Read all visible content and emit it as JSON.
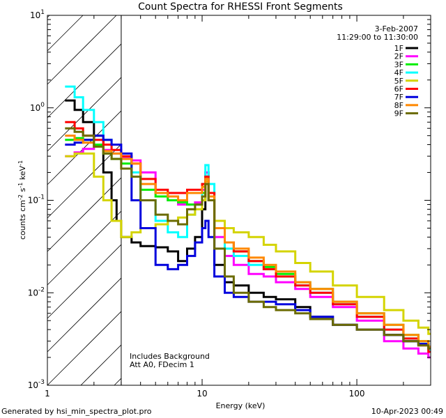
{
  "chart_data": {
    "type": "line",
    "title": "Count Spectra for RHESSI Front Segments",
    "xlabel": "Energy (keV)",
    "ylabel_parts": {
      "pre": "counts cm",
      "exp1": "-2",
      "mid": " s",
      "exp2": "-1",
      "post": " keV",
      "exp3": "-1"
    },
    "x_scale": "log",
    "y_scale": "log",
    "xlim": [
      1,
      300
    ],
    "ylim": [
      0.001,
      10
    ],
    "x_ticks": [
      {
        "value": 1,
        "label": "1"
      },
      {
        "value": 10,
        "label": "10"
      },
      {
        "value": 100,
        "label": "100"
      }
    ],
    "y_ticks": [
      {
        "value": 0.001,
        "base": "10",
        "exp": "-3"
      },
      {
        "value": 0.01,
        "base": "10",
        "exp": "-2"
      },
      {
        "value": 0.1,
        "base": "10",
        "exp": "-1"
      },
      {
        "value": 1,
        "base": "10",
        "exp": "0"
      },
      {
        "value": 10,
        "base": "10",
        "exp": "1"
      }
    ],
    "hatched_region_kev": [
      1,
      3
    ],
    "date": "3-Feb-2007",
    "time_range": "11:29:00 to 11:30:00",
    "annotations": [
      "Includes Background",
      "Att A0, FDecim 1"
    ],
    "series": [
      {
        "name": "1F",
        "color": "#000000",
        "points": [
          [
            1.3,
            1.2
          ],
          [
            1.5,
            0.95
          ],
          [
            1.7,
            0.7
          ],
          [
            2.0,
            0.5
          ],
          [
            2.3,
            0.2
          ],
          [
            2.6,
            0.1
          ],
          [
            2.8,
            0.06
          ],
          [
            3.0,
            0.04
          ],
          [
            3.5,
            0.035
          ],
          [
            4.0,
            0.032
          ],
          [
            5.0,
            0.031
          ],
          [
            6.0,
            0.028
          ],
          [
            7.0,
            0.022
          ],
          [
            8.0,
            0.03
          ],
          [
            9.0,
            0.04
          ],
          [
            10.0,
            0.08
          ],
          [
            10.5,
            0.2
          ],
          [
            11.0,
            0.1
          ],
          [
            12.0,
            0.02
          ],
          [
            14.0,
            0.013
          ],
          [
            16.0,
            0.012
          ],
          [
            20.0,
            0.01
          ],
          [
            25.0,
            0.009
          ],
          [
            30.0,
            0.0085
          ],
          [
            40.0,
            0.007
          ],
          [
            50.0,
            0.0055
          ],
          [
            70.0,
            0.0045
          ],
          [
            100.0,
            0.004
          ],
          [
            150.0,
            0.0035
          ],
          [
            200.0,
            0.003
          ],
          [
            250.0,
            0.0028
          ],
          [
            290.0,
            0.0026
          ]
        ]
      },
      {
        "name": "2F",
        "color": "#ff00ff",
        "points": [
          [
            1.3,
            0.3
          ],
          [
            1.5,
            0.33
          ],
          [
            1.7,
            0.36
          ],
          [
            2.0,
            0.38
          ],
          [
            2.3,
            0.35
          ],
          [
            2.6,
            0.32
          ],
          [
            3.0,
            0.29
          ],
          [
            3.5,
            0.27
          ],
          [
            4.0,
            0.2
          ],
          [
            5.0,
            0.12
          ],
          [
            6.0,
            0.1
          ],
          [
            7.0,
            0.09
          ],
          [
            8.0,
            0.09
          ],
          [
            9.0,
            0.095
          ],
          [
            10.0,
            0.13
          ],
          [
            10.5,
            0.2
          ],
          [
            11.0,
            0.12
          ],
          [
            12.0,
            0.04
          ],
          [
            14.0,
            0.025
          ],
          [
            16.0,
            0.02
          ],
          [
            20.0,
            0.016
          ],
          [
            25.0,
            0.015
          ],
          [
            30.0,
            0.013
          ],
          [
            40.0,
            0.011
          ],
          [
            50.0,
            0.009
          ],
          [
            70.0,
            0.007
          ],
          [
            100.0,
            0.005
          ],
          [
            150.0,
            0.003
          ],
          [
            200.0,
            0.0025
          ],
          [
            250.0,
            0.0022
          ],
          [
            290.0,
            0.002
          ]
        ]
      },
      {
        "name": "3F",
        "color": "#00ee00",
        "points": [
          [
            1.3,
            0.45
          ],
          [
            1.5,
            0.47
          ],
          [
            1.7,
            0.45
          ],
          [
            2.0,
            0.4
          ],
          [
            2.3,
            0.32
          ],
          [
            2.6,
            0.28
          ],
          [
            3.0,
            0.25
          ],
          [
            3.5,
            0.2
          ],
          [
            4.0,
            0.13
          ],
          [
            5.0,
            0.11
          ],
          [
            6.0,
            0.1
          ],
          [
            7.0,
            0.095
          ],
          [
            8.0,
            0.09
          ],
          [
            9.0,
            0.09
          ],
          [
            10.0,
            0.12
          ],
          [
            10.5,
            0.18
          ],
          [
            11.0,
            0.12
          ],
          [
            12.0,
            0.05
          ],
          [
            14.0,
            0.035
          ],
          [
            16.0,
            0.028
          ],
          [
            20.0,
            0.022
          ],
          [
            25.0,
            0.019
          ],
          [
            30.0,
            0.016
          ],
          [
            40.0,
            0.013
          ],
          [
            50.0,
            0.011
          ],
          [
            70.0,
            0.008
          ],
          [
            100.0,
            0.006
          ],
          [
            150.0,
            0.0045
          ],
          [
            200.0,
            0.0035
          ],
          [
            250.0,
            0.003
          ],
          [
            290.0,
            0.0025
          ]
        ]
      },
      {
        "name": "4F",
        "color": "#00ffff",
        "points": [
          [
            1.3,
            1.7
          ],
          [
            1.5,
            1.3
          ],
          [
            1.7,
            0.95
          ],
          [
            2.0,
            0.7
          ],
          [
            2.3,
            0.45
          ],
          [
            2.6,
            0.32
          ],
          [
            3.0,
            0.28
          ],
          [
            3.5,
            0.2
          ],
          [
            4.0,
            0.1
          ],
          [
            5.0,
            0.06
          ],
          [
            6.0,
            0.045
          ],
          [
            7.0,
            0.04
          ],
          [
            8.0,
            0.07
          ],
          [
            9.0,
            0.09
          ],
          [
            10.0,
            0.15
          ],
          [
            10.5,
            0.24
          ],
          [
            11.0,
            0.15
          ],
          [
            12.0,
            0.05
          ],
          [
            14.0,
            0.03
          ],
          [
            16.0,
            0.025
          ],
          [
            20.0,
            0.02
          ],
          [
            25.0,
            0.018
          ],
          [
            30.0,
            0.015
          ],
          [
            40.0,
            0.012
          ],
          [
            50.0,
            0.01
          ],
          [
            70.0,
            0.0075
          ],
          [
            100.0,
            0.0055
          ],
          [
            150.0,
            0.004
          ],
          [
            200.0,
            0.0032
          ],
          [
            250.0,
            0.0028
          ],
          [
            290.0,
            0.0024
          ]
        ]
      },
      {
        "name": "5F",
        "color": "#d4d400",
        "points": [
          [
            1.3,
            0.3
          ],
          [
            1.5,
            0.32
          ],
          [
            1.7,
            0.32
          ],
          [
            2.0,
            0.18
          ],
          [
            2.3,
            0.1
          ],
          [
            2.6,
            0.06
          ],
          [
            3.0,
            0.04
          ],
          [
            3.5,
            0.045
          ],
          [
            4.0,
            0.05
          ],
          [
            5.0,
            0.055
          ],
          [
            6.0,
            0.06
          ],
          [
            7.0,
            0.065
          ],
          [
            8.0,
            0.07
          ],
          [
            9.0,
            0.08
          ],
          [
            10.0,
            0.1
          ],
          [
            10.5,
            0.16
          ],
          [
            11.0,
            0.1
          ],
          [
            12.0,
            0.06
          ],
          [
            14.0,
            0.05
          ],
          [
            16.0,
            0.045
          ],
          [
            20.0,
            0.04
          ],
          [
            25.0,
            0.033
          ],
          [
            30.0,
            0.028
          ],
          [
            40.0,
            0.021
          ],
          [
            50.0,
            0.017
          ],
          [
            70.0,
            0.012
          ],
          [
            100.0,
            0.009
          ],
          [
            150.0,
            0.0065
          ],
          [
            200.0,
            0.005
          ],
          [
            250.0,
            0.0042
          ],
          [
            290.0,
            0.0036
          ]
        ]
      },
      {
        "name": "6F",
        "color": "#ff0000",
        "points": [
          [
            1.3,
            0.7
          ],
          [
            1.5,
            0.6
          ],
          [
            1.7,
            0.5
          ],
          [
            2.0,
            0.45
          ],
          [
            2.3,
            0.4
          ],
          [
            2.6,
            0.35
          ],
          [
            3.0,
            0.3
          ],
          [
            3.5,
            0.25
          ],
          [
            4.0,
            0.17
          ],
          [
            5.0,
            0.13
          ],
          [
            6.0,
            0.12
          ],
          [
            7.0,
            0.12
          ],
          [
            8.0,
            0.13
          ],
          [
            9.0,
            0.13
          ],
          [
            10.0,
            0.15
          ],
          [
            10.5,
            0.18
          ],
          [
            11.0,
            0.12
          ],
          [
            12.0,
            0.05
          ],
          [
            14.0,
            0.035
          ],
          [
            16.0,
            0.028
          ],
          [
            20.0,
            0.022
          ],
          [
            25.0,
            0.018
          ],
          [
            30.0,
            0.015
          ],
          [
            40.0,
            0.012
          ],
          [
            50.0,
            0.01
          ],
          [
            70.0,
            0.0075
          ],
          [
            100.0,
            0.0055
          ],
          [
            150.0,
            0.004
          ],
          [
            200.0,
            0.0032
          ],
          [
            250.0,
            0.0027
          ],
          [
            290.0,
            0.0023
          ]
        ]
      },
      {
        "name": "7F",
        "color": "#0000dd",
        "points": [
          [
            1.3,
            0.4
          ],
          [
            1.5,
            0.42
          ],
          [
            1.7,
            0.45
          ],
          [
            2.0,
            0.5
          ],
          [
            2.3,
            0.45
          ],
          [
            2.6,
            0.4
          ],
          [
            3.0,
            0.32
          ],
          [
            3.5,
            0.1
          ],
          [
            4.0,
            0.05
          ],
          [
            5.0,
            0.02
          ],
          [
            6.0,
            0.018
          ],
          [
            7.0,
            0.02
          ],
          [
            8.0,
            0.025
          ],
          [
            9.0,
            0.035
          ],
          [
            10.0,
            0.05
          ],
          [
            10.5,
            0.06
          ],
          [
            11.0,
            0.04
          ],
          [
            12.0,
            0.015
          ],
          [
            14.0,
            0.01
          ],
          [
            16.0,
            0.009
          ],
          [
            20.0,
            0.008
          ],
          [
            25.0,
            0.008
          ],
          [
            30.0,
            0.0075
          ],
          [
            40.0,
            0.0065
          ],
          [
            50.0,
            0.0055
          ],
          [
            70.0,
            0.0045
          ],
          [
            100.0,
            0.004
          ],
          [
            150.0,
            0.0035
          ],
          [
            200.0,
            0.003
          ],
          [
            250.0,
            0.0028
          ],
          [
            290.0,
            0.0026
          ]
        ]
      },
      {
        "name": "8F",
        "color": "#ff8800",
        "points": [
          [
            1.3,
            0.5
          ],
          [
            1.5,
            0.45
          ],
          [
            1.7,
            0.42
          ],
          [
            2.0,
            0.38
          ],
          [
            2.3,
            0.34
          ],
          [
            2.6,
            0.32
          ],
          [
            3.0,
            0.28
          ],
          [
            3.5,
            0.25
          ],
          [
            4.0,
            0.15
          ],
          [
            5.0,
            0.12
          ],
          [
            6.0,
            0.11
          ],
          [
            7.0,
            0.1
          ],
          [
            8.0,
            0.12
          ],
          [
            9.0,
            0.12
          ],
          [
            10.0,
            0.14
          ],
          [
            10.5,
            0.17
          ],
          [
            11.0,
            0.11
          ],
          [
            12.0,
            0.05
          ],
          [
            14.0,
            0.035
          ],
          [
            16.0,
            0.03
          ],
          [
            20.0,
            0.024
          ],
          [
            25.0,
            0.02
          ],
          [
            30.0,
            0.017
          ],
          [
            40.0,
            0.013
          ],
          [
            50.0,
            0.011
          ],
          [
            70.0,
            0.008
          ],
          [
            100.0,
            0.006
          ],
          [
            150.0,
            0.0045
          ],
          [
            200.0,
            0.0035
          ],
          [
            250.0,
            0.003
          ],
          [
            290.0,
            0.0026
          ]
        ]
      },
      {
        "name": "9F",
        "color": "#6b6b00",
        "points": [
          [
            1.3,
            0.6
          ],
          [
            1.5,
            0.55
          ],
          [
            1.7,
            0.5
          ],
          [
            2.0,
            0.38
          ],
          [
            2.3,
            0.32
          ],
          [
            2.6,
            0.28
          ],
          [
            3.0,
            0.22
          ],
          [
            3.5,
            0.18
          ],
          [
            4.0,
            0.1
          ],
          [
            5.0,
            0.07
          ],
          [
            6.0,
            0.06
          ],
          [
            7.0,
            0.055
          ],
          [
            8.0,
            0.08
          ],
          [
            9.0,
            0.09
          ],
          [
            10.0,
            0.11
          ],
          [
            10.5,
            0.15
          ],
          [
            11.0,
            0.1
          ],
          [
            12.0,
            0.03
          ],
          [
            14.0,
            0.015
          ],
          [
            16.0,
            0.01
          ],
          [
            20.0,
            0.008
          ],
          [
            25.0,
            0.007
          ],
          [
            30.0,
            0.0065
          ],
          [
            40.0,
            0.006
          ],
          [
            50.0,
            0.0052
          ],
          [
            70.0,
            0.0045
          ],
          [
            100.0,
            0.004
          ],
          [
            150.0,
            0.0035
          ],
          [
            200.0,
            0.003
          ],
          [
            250.0,
            0.0027
          ],
          [
            290.0,
            0.0025
          ]
        ]
      }
    ]
  },
  "footer": {
    "generated": "Generated by hsi_min_spectra_plot.pro",
    "timestamp": "10-Apr-2023 00:49"
  }
}
